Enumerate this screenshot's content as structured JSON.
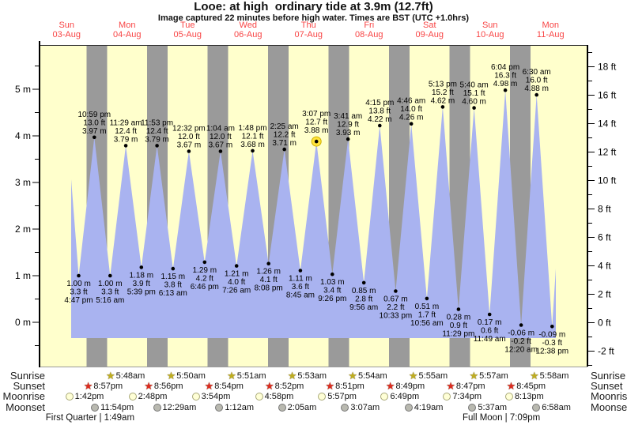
{
  "title": "Looe: at high  ordinary tide at 3.9m (12.7ft)",
  "subtitle": "Image captured 22 minutes before high water. Times are BST (UTC +1.0hrs)",
  "chart_data": {
    "type": "area",
    "title": "Looe: at high  ordinary tide at 3.9m (12.7ft)",
    "x_days": [
      {
        "name": "Sun",
        "date": "03-Aug"
      },
      {
        "name": "Mon",
        "date": "04-Aug"
      },
      {
        "name": "Tue",
        "date": "05-Aug"
      },
      {
        "name": "Wed",
        "date": "06-Aug"
      },
      {
        "name": "Thu",
        "date": "07-Aug"
      },
      {
        "name": "Fri",
        "date": "08-Aug"
      },
      {
        "name": "Sat",
        "date": "09-Aug"
      },
      {
        "name": "Sun",
        "date": "10-Aug"
      },
      {
        "name": "Mon",
        "date": "11-Aug"
      }
    ],
    "y_left": {
      "unit": "m",
      "ticks": [
        0,
        1,
        2,
        3,
        4,
        5
      ],
      "minor_step": 0.5,
      "range": [
        -1,
        6
      ]
    },
    "y_right": {
      "unit": "ft",
      "ticks": [
        -2,
        0,
        2,
        4,
        6,
        8,
        10,
        12,
        14,
        16,
        18
      ],
      "minor_step": 1,
      "range": [
        -3,
        19
      ]
    },
    "high_tides": [
      {
        "day": 0,
        "time": "10:59 pm",
        "ft": "13.0",
        "m": "3.97"
      },
      {
        "day": 1,
        "time": "11:29 am",
        "ft": "12.4",
        "m": "3.79"
      },
      {
        "day": 1,
        "time": "11:53 pm",
        "ft": "12.4",
        "m": "3.79"
      },
      {
        "day": 2,
        "time": "12:32 pm",
        "ft": "12.0",
        "m": "3.67"
      },
      {
        "day": 3,
        "time": "1:04 am",
        "ft": "12.0",
        "m": "3.67"
      },
      {
        "day": 3,
        "time": "1:48 pm",
        "ft": "12.1",
        "m": "3.68"
      },
      {
        "day": 4,
        "time": "2:25 am",
        "ft": "12.2",
        "m": "3.71"
      },
      {
        "day": 4,
        "time": "3:07 pm",
        "ft": "12.7",
        "m": "3.88"
      },
      {
        "day": 5,
        "time": "3:41 am",
        "ft": "12.9",
        "m": "3.93"
      },
      {
        "day": 5,
        "time": "4:15 pm",
        "ft": "13.8",
        "m": "4.22"
      },
      {
        "day": 6,
        "time": "4:46 am",
        "ft": "14.0",
        "m": "4.26"
      },
      {
        "day": 6,
        "time": "5:13 pm",
        "ft": "15.2",
        "m": "4.62"
      },
      {
        "day": 7,
        "time": "5:40 am",
        "ft": "15.1",
        "m": "4.60"
      },
      {
        "day": 7,
        "time": "6:04 pm",
        "ft": "16.3",
        "m": "4.98"
      },
      {
        "day": 8,
        "time": "6:30 am",
        "ft": "16.0",
        "m": "4.88"
      }
    ],
    "low_tides": [
      {
        "day": 0,
        "time": "4:47 pm",
        "ft": "3.3",
        "m": "1.00"
      },
      {
        "day": 1,
        "time": "5:16 am",
        "ft": "3.3",
        "m": "1.00"
      },
      {
        "day": 1,
        "time": "5:39 pm",
        "ft": "3.9",
        "m": "1.18"
      },
      {
        "day": 2,
        "time": "6:13 am",
        "ft": "3.8",
        "m": "1.15"
      },
      {
        "day": 2,
        "time": "6:46 pm",
        "ft": "4.2",
        "m": "1.29"
      },
      {
        "day": 3,
        "time": "7:26 am",
        "ft": "4.0",
        "m": "1.21"
      },
      {
        "day": 3,
        "time": "8:08 pm",
        "ft": "4.1",
        "m": "1.26"
      },
      {
        "day": 4,
        "time": "8:45 am",
        "ft": "3.6",
        "m": "1.11"
      },
      {
        "day": 4,
        "time": "9:26 pm",
        "ft": "3.4",
        "m": "1.03"
      },
      {
        "day": 5,
        "time": "9:56 am",
        "ft": "2.8",
        "m": "0.85"
      },
      {
        "day": 5,
        "time": "10:33 pm",
        "ft": "2.2",
        "m": "0.67"
      },
      {
        "day": 6,
        "time": "10:56 am",
        "ft": "1.7",
        "m": "0.51"
      },
      {
        "day": 6,
        "time": "11:29 pm",
        "ft": "0.9",
        "m": "0.28"
      },
      {
        "day": 7,
        "time": "11:49 am",
        "ft": "0.6",
        "m": "0.17"
      },
      {
        "day": 8,
        "time": "12:20 am",
        "ft": "-0.2",
        "m": "-0.06"
      },
      {
        "day": 8,
        "time": "12:38 pm",
        "ft": "-0.3",
        "m": "-0.09"
      }
    ],
    "current_marker": {
      "on_high_index": 7
    }
  },
  "astro": {
    "rows": [
      {
        "key": "sunrise",
        "label": "Sunrise",
        "icon": "sunrise-star-icon",
        "events": [
          {
            "day": 1,
            "time": "5:48am"
          },
          {
            "day": 2,
            "time": "5:50am"
          },
          {
            "day": 3,
            "time": "5:51am"
          },
          {
            "day": 4,
            "time": "5:53am"
          },
          {
            "day": 5,
            "time": "5:54am"
          },
          {
            "day": 6,
            "time": "5:55am"
          },
          {
            "day": 7,
            "time": "5:57am"
          },
          {
            "day": 8,
            "time": "5:58am"
          }
        ]
      },
      {
        "key": "sunset",
        "label": "Sunset",
        "icon": "sunset-star-icon",
        "events": [
          {
            "day": 0,
            "time": "8:57pm"
          },
          {
            "day": 1,
            "time": "8:56pm"
          },
          {
            "day": 2,
            "time": "8:54pm"
          },
          {
            "day": 3,
            "time": "8:52pm"
          },
          {
            "day": 4,
            "time": "8:51pm"
          },
          {
            "day": 5,
            "time": "8:49pm"
          },
          {
            "day": 6,
            "time": "8:47pm"
          },
          {
            "day": 7,
            "time": "8:45pm"
          }
        ]
      },
      {
        "key": "moonrise",
        "label": "Moonrise",
        "icon": "moonrise-circle-icon",
        "events": [
          {
            "day": 0,
            "time": "1:42pm"
          },
          {
            "day": 1,
            "time": "2:48pm"
          },
          {
            "day": 2,
            "time": "3:54pm"
          },
          {
            "day": 3,
            "time": "4:58pm"
          },
          {
            "day": 4,
            "time": "5:57pm"
          },
          {
            "day": 5,
            "time": "6:49pm"
          },
          {
            "day": 6,
            "time": "7:34pm"
          },
          {
            "day": 7,
            "time": "8:13pm"
          }
        ]
      },
      {
        "key": "moonset",
        "label": "Moonset",
        "icon": "moonset-circle-icon",
        "events": [
          {
            "day": 0,
            "time": "11:54pm"
          },
          {
            "day": 2,
            "time": "12:29am"
          },
          {
            "day": 3,
            "time": "1:12am"
          },
          {
            "day": 4,
            "time": "2:05am"
          },
          {
            "day": 5,
            "time": "3:07am"
          },
          {
            "day": 6,
            "time": "4:19am"
          },
          {
            "day": 7,
            "time": "5:37am"
          },
          {
            "day": 8,
            "time": "6:58am"
          }
        ]
      }
    ],
    "phases": [
      {
        "label": "First Quarter | 1:49am",
        "t_hours": 21.3
      },
      {
        "label": "Full Moon | 7:09pm",
        "t_hours": 184.5
      }
    ]
  },
  "colors": {
    "plot_bg": "#ffffcc",
    "night_band": "#9a9a9a",
    "tide_fill": "#a9b3f0",
    "day_label": "#f84545",
    "current_marker": "#ffe43a",
    "current_marker_edge": "#cfae00",
    "sunrise_icon": "#bfae1f",
    "sunset_icon": "#dd2b20",
    "moonrise_icon": "#ffffd6",
    "moonrise_icon_edge": "#a8a878",
    "moonset_icon": "#b9b9b0",
    "moonset_icon_edge": "#777777"
  }
}
